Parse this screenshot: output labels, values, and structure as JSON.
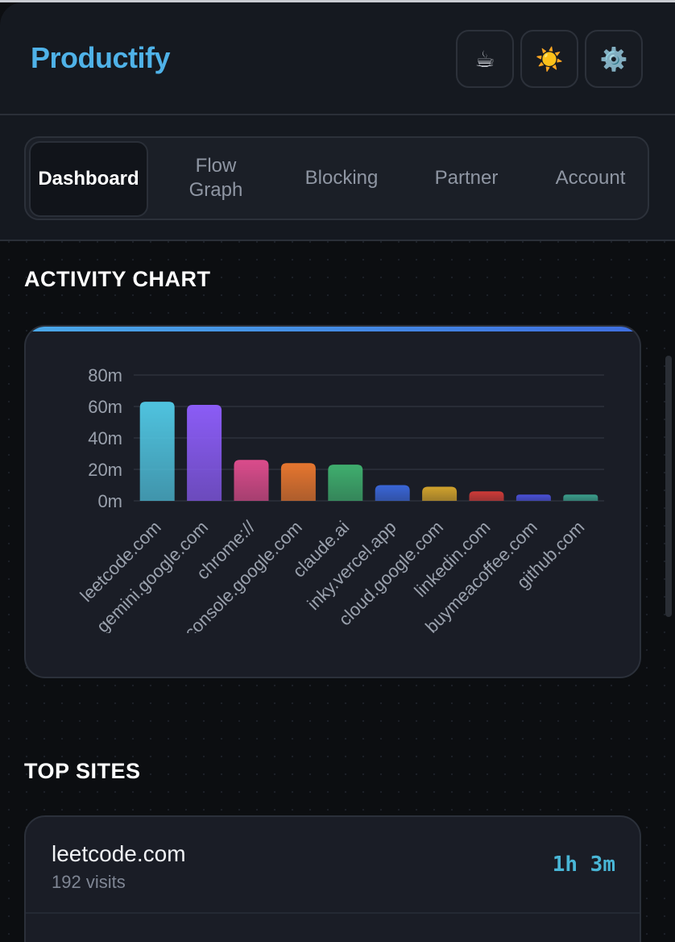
{
  "app": {
    "title": "Productify"
  },
  "header": {
    "buttons": [
      {
        "icon": "coffee-icon",
        "glyph": "☕"
      },
      {
        "icon": "sun-icon",
        "glyph": "☀️"
      },
      {
        "icon": "gear-icon",
        "glyph": "⚙️"
      }
    ]
  },
  "tabs": [
    "Dashboard",
    "Flow Graph",
    "Blocking",
    "Partner",
    "Account"
  ],
  "sections": {
    "activity_chart": "ACTIVITY CHART",
    "top_sites": "TOP SITES"
  },
  "chart_data": {
    "type": "bar",
    "title": "",
    "xlabel": "",
    "ylabel": "",
    "ylim": [
      0,
      80
    ],
    "yticks": [
      "0m",
      "20m",
      "40m",
      "60m",
      "80m"
    ],
    "categories": [
      "leetcode.com",
      "gemini.google.com",
      "chrome://",
      "console.google.com",
      "claude.ai",
      "inky.vercel.app",
      "cloud.google.com",
      "linkedin.com",
      "buymeacoffee.com",
      "github.com"
    ],
    "values": [
      63,
      61,
      26,
      24,
      23,
      10,
      9,
      6,
      4,
      4
    ],
    "colors": [
      "#4fc3df",
      "#8b5cf6",
      "#db4c8c",
      "#e6762f",
      "#3fae6e",
      "#3a66d8",
      "#d1a22c",
      "#cf3b38",
      "#4a50d8",
      "#3b9f8c"
    ],
    "grid": true
  },
  "top_sites": [
    {
      "name": "leetcode.com",
      "visits": "192 visits",
      "time": "1h 3m"
    }
  ]
}
